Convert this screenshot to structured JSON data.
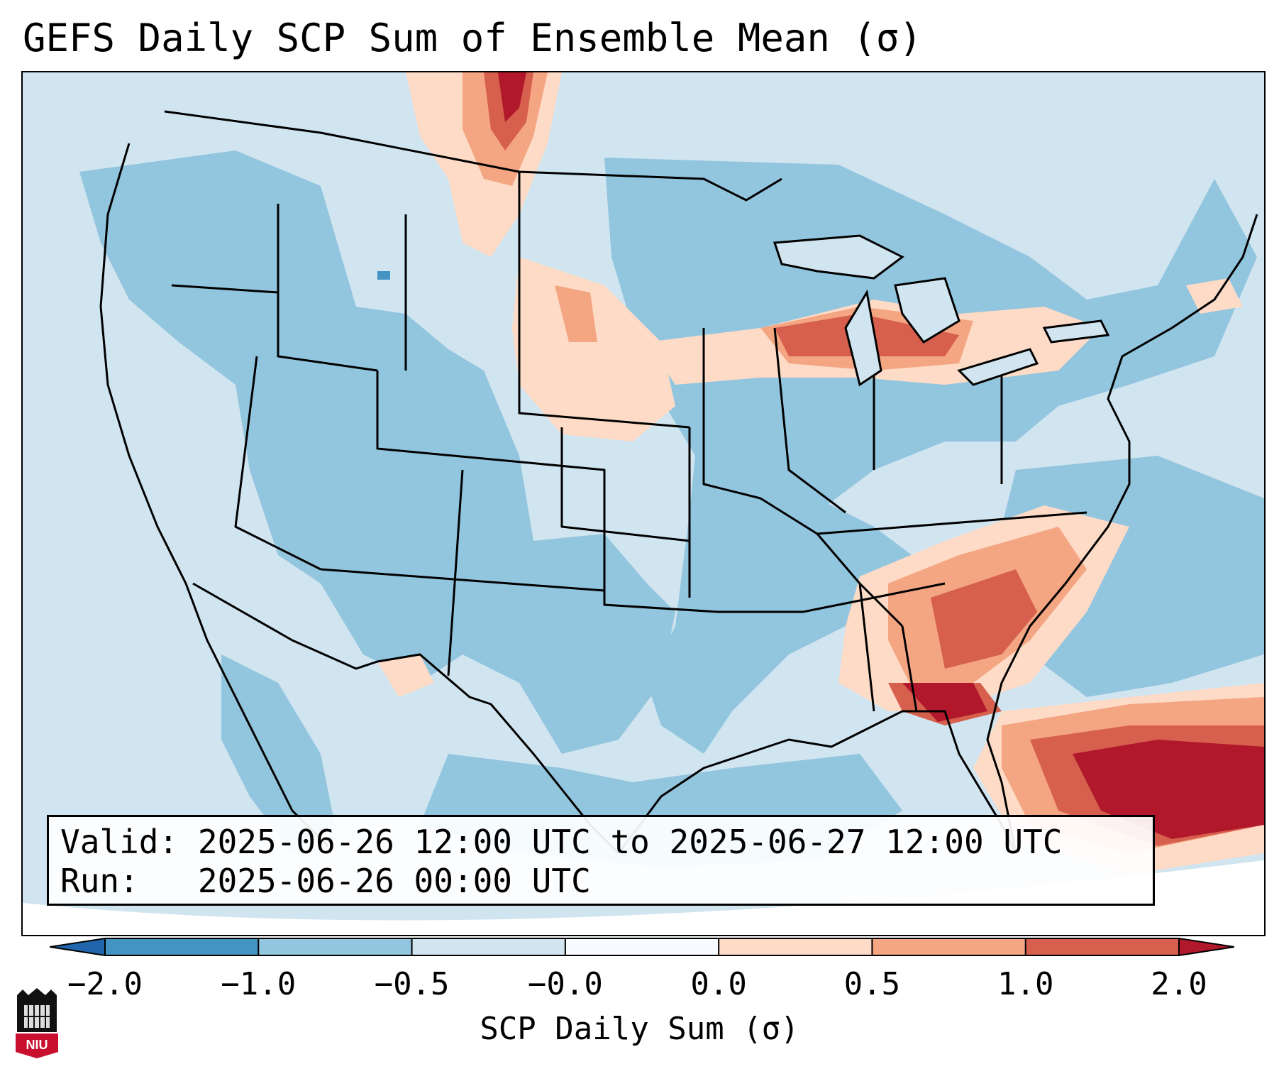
{
  "title": "GEFS Daily SCP Sum of Ensemble Mean (σ)",
  "valid_label": "Valid:",
  "valid_value": "2025-06-26 12:00 UTC to 2025-06-27 12:00 UTC",
  "run_label": "Run:",
  "run_value": "2025-06-26 00:00 UTC",
  "colorbar": {
    "label": "SCP Daily Sum (σ)",
    "ticks": [
      "−2.0",
      "−1.0",
      "−0.5",
      "−0.0",
      "0.0",
      "0.5",
      "1.0",
      "2.0"
    ],
    "bin_colors": [
      "#4393c3",
      "#92c5de",
      "#d1e5f0",
      "#f7fbff",
      "#fddbc7",
      "#f4a582",
      "#d6604d",
      "#b2182b"
    ],
    "under_color": "#2166ac",
    "over_color": "#b2182b"
  },
  "map_features": {
    "ocean_color": "#d1e5f0",
    "state_lines_color": "#000000",
    "coastline_color": "#000000"
  },
  "logo_text": "NIU"
}
